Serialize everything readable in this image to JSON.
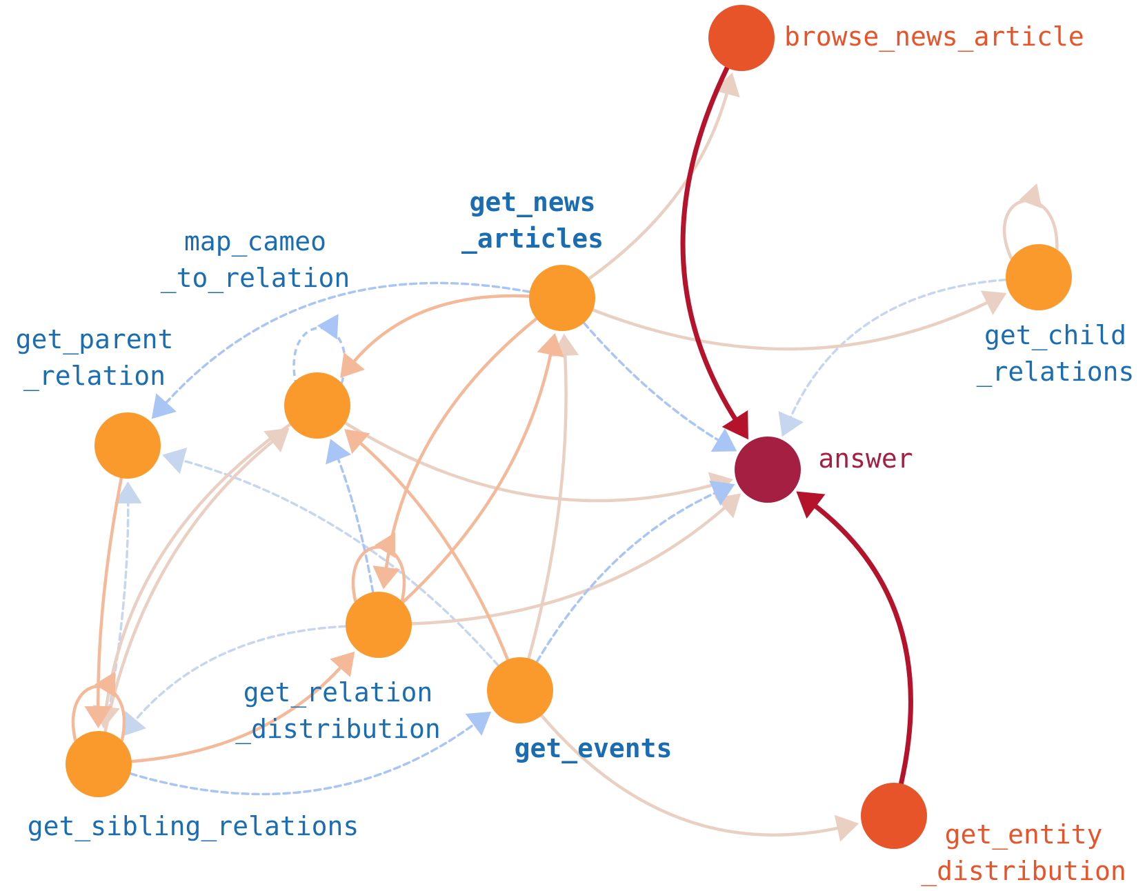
{
  "colors": {
    "node_tool": "#fb9a2c",
    "node_end": "#e8542a",
    "node_answer": "#a51f42",
    "label_blue": "#1a6db3",
    "label_orange": "#e8542a",
    "label_answer": "#a51f42",
    "edge_heavy": "#b5122c",
    "edge_peach": "#f4b999",
    "edge_beige": "#ead0c3",
    "edge_blue": "#a9c5f6",
    "edge_blue_light": "#c7d6ef"
  },
  "nodes": [
    {
      "id": "browse_news_article",
      "label_lines": [
        "browse_news_article"
      ],
      "kind": "end"
    },
    {
      "id": "get_news_articles",
      "label_lines": [
        "get_news",
        "_articles"
      ],
      "kind": "tool"
    },
    {
      "id": "map_cameo_to_relation",
      "label_lines": [
        "map_cameo",
        "_to_relation"
      ],
      "kind": "tool"
    },
    {
      "id": "get_parent_relation",
      "label_lines": [
        "get_parent",
        "_relation"
      ],
      "kind": "tool"
    },
    {
      "id": "get_child_relations",
      "label_lines": [
        "get_child",
        "_relations"
      ],
      "kind": "tool"
    },
    {
      "id": "answer",
      "label_lines": [
        "answer"
      ],
      "kind": "answer"
    },
    {
      "id": "get_relation_distribution",
      "label_lines": [
        "get_relation",
        "_distribution"
      ],
      "kind": "tool"
    },
    {
      "id": "get_events",
      "label_lines": [
        "get_events"
      ],
      "kind": "tool"
    },
    {
      "id": "get_sibling_relations",
      "label_lines": [
        "get_sibling_relations"
      ],
      "kind": "tool"
    },
    {
      "id": "get_entity_distribution",
      "label_lines": [
        "get_entity",
        "_distribution"
      ],
      "kind": "end"
    }
  ],
  "edges": [
    {
      "from": "browse_news_article",
      "to": "answer",
      "style": "heavy"
    },
    {
      "from": "get_entity_distribution",
      "to": "answer",
      "style": "heavy"
    },
    {
      "from": "get_news_articles",
      "to": "browse_news_article",
      "style": "beige"
    },
    {
      "from": "get_news_articles",
      "to": "get_child_relations",
      "style": "beige"
    },
    {
      "from": "get_news_articles",
      "to": "map_cameo_to_relation",
      "style": "peach"
    },
    {
      "from": "get_news_articles",
      "to": "get_relation_distribution",
      "style": "peach"
    },
    {
      "from": "get_news_articles",
      "to": "get_parent_relation",
      "style": "blue"
    },
    {
      "from": "get_news_articles",
      "to": "answer",
      "style": "blue"
    },
    {
      "from": "get_child_relations",
      "to": "get_child_relations",
      "style": "beige"
    },
    {
      "from": "get_child_relations",
      "to": "answer",
      "style": "blue_light"
    },
    {
      "from": "map_cameo_to_relation",
      "to": "map_cameo_to_relation",
      "style": "blue"
    },
    {
      "from": "map_cameo_to_relation",
      "to": "answer",
      "style": "beige"
    },
    {
      "from": "map_cameo_to_relation",
      "to": "get_sibling_relations",
      "style": "beige"
    },
    {
      "from": "get_relation_distribution",
      "to": "get_relation_distribution",
      "style": "peach"
    },
    {
      "from": "get_relation_distribution",
      "to": "get_news_articles",
      "style": "peach"
    },
    {
      "from": "get_relation_distribution",
      "to": "answer",
      "style": "beige"
    },
    {
      "from": "get_relation_distribution",
      "to": "map_cameo_to_relation",
      "style": "blue"
    },
    {
      "from": "get_relation_distribution",
      "to": "get_sibling_relations",
      "style": "blue_light"
    },
    {
      "from": "get_events",
      "to": "get_news_articles",
      "style": "beige"
    },
    {
      "from": "get_events",
      "to": "map_cameo_to_relation",
      "style": "peach"
    },
    {
      "from": "get_events",
      "to": "answer",
      "style": "blue"
    },
    {
      "from": "get_events",
      "to": "get_entity_distribution",
      "style": "beige"
    },
    {
      "from": "get_events",
      "to": "get_parent_relation",
      "style": "blue_light"
    },
    {
      "from": "get_sibling_relations",
      "to": "get_sibling_relations",
      "style": "peach"
    },
    {
      "from": "get_sibling_relations",
      "to": "get_events",
      "style": "blue"
    },
    {
      "from": "get_sibling_relations",
      "to": "get_relation_distribution",
      "style": "peach"
    },
    {
      "from": "get_sibling_relations",
      "to": "map_cameo_to_relation",
      "style": "beige"
    },
    {
      "from": "get_sibling_relations",
      "to": "get_parent_relation",
      "style": "blue_light"
    },
    {
      "from": "get_parent_relation",
      "to": "get_sibling_relations",
      "style": "peach"
    }
  ]
}
